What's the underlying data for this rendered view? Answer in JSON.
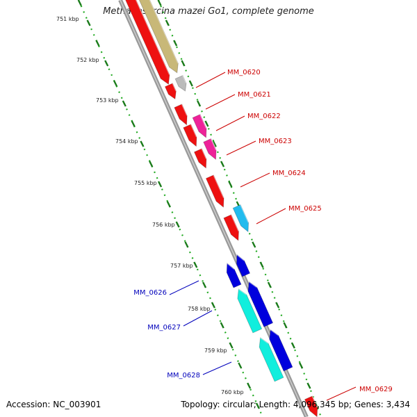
{
  "title": "Methanosarcina mazei Go1, complete genome",
  "footer": {
    "accession": "Accession: NC_003901",
    "summary": "Topology: circular; Length: 4,096,345 bp; Genes: 3,434"
  },
  "ruler": [
    {
      "label": "751 kbp"
    },
    {
      "label": "752 kbp"
    },
    {
      "label": "753 kbp"
    },
    {
      "label": "754 kbp"
    },
    {
      "label": "755 kbp"
    },
    {
      "label": "756 kbp"
    },
    {
      "label": "757 kbp"
    },
    {
      "label": "758 kbp"
    },
    {
      "label": "759 kbp"
    },
    {
      "label": "760 kbp"
    }
  ],
  "gene_labels": [
    {
      "id": "MM_0620",
      "strand": "forward"
    },
    {
      "id": "MM_0621",
      "strand": "forward"
    },
    {
      "id": "MM_0622",
      "strand": "forward"
    },
    {
      "id": "MM_0623",
      "strand": "forward"
    },
    {
      "id": "MM_0624",
      "strand": "forward"
    },
    {
      "id": "MM_0625",
      "strand": "forward"
    },
    {
      "id": "MM_0626",
      "strand": "reverse"
    },
    {
      "id": "MM_0627",
      "strand": "reverse"
    },
    {
      "id": "MM_0628",
      "strand": "reverse"
    },
    {
      "id": "MM_0629",
      "strand": "forward"
    }
  ],
  "colors": {
    "forward_label": "#cc0000",
    "reverse_label": "#0000bb",
    "red": "#ee1111",
    "pink": "#ee2299",
    "olive": "#c8b878",
    "grey": "#bbbbbb",
    "light_blue": "#22bbee",
    "blue": "#0000dd",
    "cyan": "#11eedd",
    "ruler": "#228822",
    "backbone": "#888888"
  }
}
